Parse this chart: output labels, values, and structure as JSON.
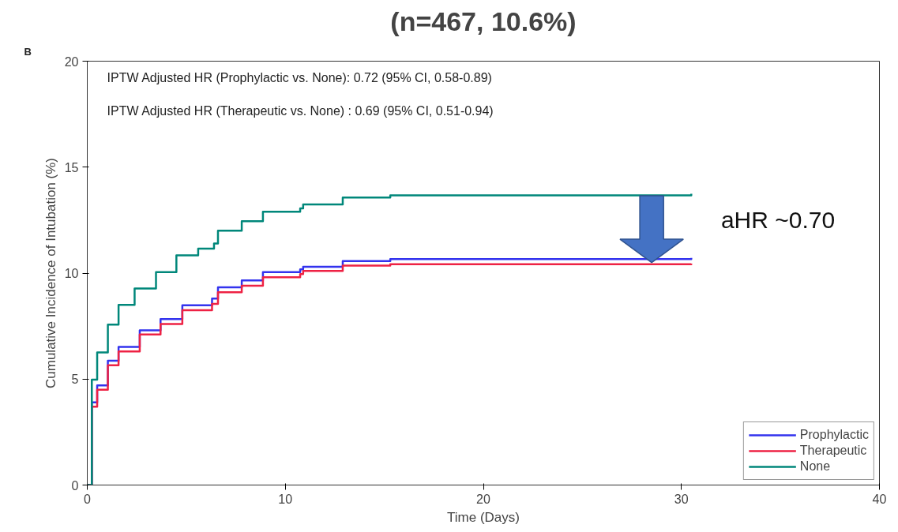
{
  "chart_data": {
    "type": "step",
    "title": "(n=467, 10.6%)",
    "xlabel": "Time (Days)",
    "ylabel": "Cumulative Incidence of Intubation (%)",
    "annotations": [
      "B",
      "IPTW Adjusted HR (Prophylactic vs. None): 0.72 (95% CI, 0.58-0.89)",
      "IPTW Adjusted HR (Therapeutic vs. None) : 0.69 (95% CI, 0.51-0.94)",
      "aHR ~0.70"
    ],
    "xlim": [
      0,
      40
    ],
    "ylim": [
      0,
      20
    ],
    "xticks": [
      0,
      10,
      20,
      30,
      40
    ],
    "yticks": [
      0,
      5,
      10,
      15,
      20
    ],
    "grid": false,
    "legend": "bottom right",
    "line_style": "solid",
    "series": [
      {
        "name": "Prophylactic",
        "color": "#3333ee",
        "x": [
          0,
          0.23,
          0.5,
          1.04,
          1.58,
          2.65,
          3.7,
          4.8,
          6.3,
          6.6,
          7.8,
          8.87,
          10.75,
          10.9,
          12.9,
          15.3,
          30.5
        ],
        "values": [
          0,
          3.9,
          4.7,
          5.87,
          6.52,
          7.3,
          7.83,
          8.48,
          8.8,
          9.33,
          9.66,
          10.05,
          10.18,
          10.3,
          10.57,
          10.66,
          10.72
        ]
      },
      {
        "name": "Therapeutic",
        "color": "#ee2244",
        "x": [
          0,
          0.23,
          0.5,
          1.04,
          1.58,
          2.65,
          3.7,
          4.8,
          6.3,
          6.6,
          7.8,
          8.87,
          10.75,
          10.9,
          12.9,
          15.3,
          30.5
        ],
        "values": [
          0,
          3.7,
          4.5,
          5.65,
          6.3,
          7.1,
          7.6,
          8.25,
          8.55,
          9.1,
          9.4,
          9.8,
          9.95,
          10.1,
          10.35,
          10.42,
          10.45
        ]
      },
      {
        "name": "None",
        "color": "#00877a",
        "x": [
          0,
          0.23,
          0.5,
          1.04,
          1.58,
          2.39,
          3.47,
          4.5,
          5.6,
          6.4,
          6.6,
          7.8,
          8.87,
          10.75,
          10.9,
          12.9,
          15.3,
          30.5
        ],
        "values": [
          0,
          4.97,
          6.26,
          7.57,
          8.5,
          9.27,
          10.05,
          10.84,
          11.15,
          11.4,
          12.0,
          12.45,
          12.9,
          13.05,
          13.24,
          13.57,
          13.67,
          13.74
        ]
      }
    ]
  }
}
